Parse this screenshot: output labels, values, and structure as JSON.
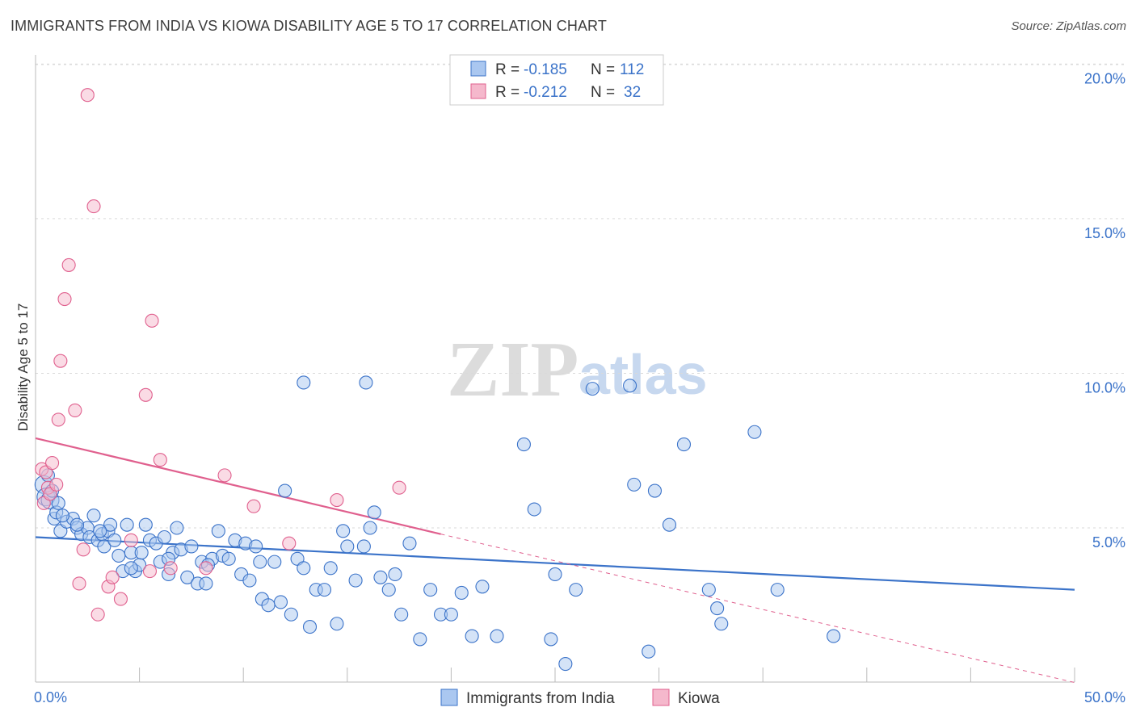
{
  "title": "IMMIGRANTS FROM INDIA VS KIOWA DISABILITY AGE 5 TO 17 CORRELATION CHART",
  "source": "Source: ZipAtlas.com",
  "watermark": {
    "part1": "ZIP",
    "part2": "atlas"
  },
  "colors": {
    "blue": "#3b73c9",
    "blue_fill": "#aac7f0",
    "pink": "#e0608e",
    "pink_fill": "#f5b8cc",
    "grid": "#d9d9d9"
  },
  "chart_data": {
    "type": "scatter",
    "title": "IMMIGRANTS FROM INDIA VS KIOWA DISABILITY AGE 5 TO 17 CORRELATION CHART",
    "xlabel": "",
    "ylabel": "Disability Age 5 to 17",
    "xlim": [
      0,
      50
    ],
    "ylim": [
      0,
      21
    ],
    "x_tick_labels": [
      "0.0%",
      "50.0%"
    ],
    "y_ticks": [
      5,
      10,
      15,
      20
    ],
    "y_tick_labels": [
      "5.0%",
      "10.0%",
      "15.0%",
      "20.0%"
    ],
    "grid": true,
    "legend_position": "bottom-center",
    "stats": [
      {
        "r_label": "R =",
        "r": "-0.185",
        "n_label": "N =",
        "n": "112"
      },
      {
        "r_label": "R =",
        "r": "-0.212",
        "n_label": "N =",
        "n": "32"
      }
    ],
    "series": [
      {
        "name": "Immigrants from India",
        "color": "#3b73c9",
        "trend": {
          "x": [
            0,
            50
          ],
          "y": [
            4.7,
            3.0
          ]
        },
        "points": [
          [
            0.4,
            6.4
          ],
          [
            0.5,
            6.0
          ],
          [
            0.7,
            5.9
          ],
          [
            0.9,
            5.3
          ],
          [
            1.0,
            5.5
          ],
          [
            1.1,
            5.8
          ],
          [
            1.2,
            4.9
          ],
          [
            1.5,
            5.2
          ],
          [
            1.8,
            5.3
          ],
          [
            2.0,
            5.0
          ],
          [
            2.2,
            4.8
          ],
          [
            2.5,
            5.0
          ],
          [
            2.6,
            4.7
          ],
          [
            2.8,
            5.4
          ],
          [
            3.0,
            4.6
          ],
          [
            3.2,
            4.8
          ],
          [
            3.3,
            4.4
          ],
          [
            3.5,
            4.9
          ],
          [
            3.6,
            5.1
          ],
          [
            3.8,
            4.6
          ],
          [
            4.0,
            4.1
          ],
          [
            4.2,
            3.6
          ],
          [
            4.4,
            5.1
          ],
          [
            4.6,
            4.2
          ],
          [
            4.8,
            3.6
          ],
          [
            5.0,
            3.8
          ],
          [
            5.1,
            4.2
          ],
          [
            5.3,
            5.1
          ],
          [
            5.5,
            4.6
          ],
          [
            5.8,
            4.5
          ],
          [
            6.0,
            3.9
          ],
          [
            6.2,
            4.7
          ],
          [
            6.4,
            3.5
          ],
          [
            6.6,
            4.2
          ],
          [
            6.8,
            5.0
          ],
          [
            7.0,
            4.3
          ],
          [
            7.3,
            3.4
          ],
          [
            7.5,
            4.4
          ],
          [
            7.8,
            3.2
          ],
          [
            8.0,
            3.9
          ],
          [
            8.2,
            3.2
          ],
          [
            8.5,
            4.0
          ],
          [
            8.8,
            4.9
          ],
          [
            9.0,
            4.1
          ],
          [
            9.3,
            4.0
          ],
          [
            9.6,
            4.6
          ],
          [
            9.9,
            3.5
          ],
          [
            10.1,
            4.5
          ],
          [
            10.3,
            3.3
          ],
          [
            10.6,
            4.4
          ],
          [
            10.9,
            2.7
          ],
          [
            11.2,
            2.5
          ],
          [
            11.5,
            3.9
          ],
          [
            11.8,
            2.6
          ],
          [
            12.0,
            6.2
          ],
          [
            12.3,
            2.2
          ],
          [
            12.6,
            4.0
          ],
          [
            12.9,
            3.7
          ],
          [
            13.2,
            1.8
          ],
          [
            13.5,
            3.0
          ],
          [
            13.9,
            3.0
          ],
          [
            14.2,
            3.7
          ],
          [
            14.5,
            1.9
          ],
          [
            14.8,
            4.9
          ],
          [
            15.0,
            4.4
          ],
          [
            15.4,
            3.3
          ],
          [
            15.8,
            4.4
          ],
          [
            16.1,
            5.0
          ],
          [
            16.3,
            5.5
          ],
          [
            16.6,
            3.4
          ],
          [
            17.0,
            3.0
          ],
          [
            17.3,
            3.5
          ],
          [
            17.6,
            2.2
          ],
          [
            18.0,
            4.5
          ],
          [
            18.5,
            1.4
          ],
          [
            19.0,
            3.0
          ],
          [
            19.5,
            2.2
          ],
          [
            20.0,
            2.2
          ],
          [
            20.5,
            2.9
          ],
          [
            21.0,
            1.5
          ],
          [
            21.5,
            3.1
          ],
          [
            22.2,
            1.5
          ],
          [
            23.5,
            7.7
          ],
          [
            24.0,
            5.6
          ],
          [
            24.8,
            1.4
          ],
          [
            25.0,
            3.5
          ],
          [
            25.5,
            0.6
          ],
          [
            26.0,
            3.0
          ],
          [
            26.8,
            9.5
          ],
          [
            28.6,
            9.6
          ],
          [
            28.8,
            6.4
          ],
          [
            29.5,
            1.0
          ],
          [
            29.8,
            6.2
          ],
          [
            30.5,
            5.1
          ],
          [
            31.2,
            7.7
          ],
          [
            32.4,
            3.0
          ],
          [
            32.8,
            2.4
          ],
          [
            33.0,
            1.9
          ],
          [
            34.6,
            8.1
          ],
          [
            35.7,
            3.0
          ],
          [
            38.4,
            1.5
          ],
          [
            15.9,
            9.7
          ],
          [
            12.9,
            9.7
          ],
          [
            10.8,
            3.9
          ],
          [
            8.3,
            3.8
          ],
          [
            6.4,
            4.0
          ],
          [
            4.6,
            3.7
          ],
          [
            3.1,
            4.9
          ],
          [
            2.0,
            5.1
          ],
          [
            1.3,
            5.4
          ],
          [
            0.8,
            6.2
          ],
          [
            0.6,
            6.7
          ]
        ]
      },
      {
        "name": "Kiowa",
        "color": "#e0608e",
        "trend": {
          "x": [
            0,
            19.5
          ],
          "y": [
            7.9,
            4.8
          ]
        },
        "trend_extended": {
          "x": [
            19.5,
            50
          ],
          "y": [
            4.8,
            0.0
          ]
        },
        "points": [
          [
            0.3,
            6.9
          ],
          [
            0.4,
            5.8
          ],
          [
            0.5,
            6.8
          ],
          [
            0.6,
            6.3
          ],
          [
            0.7,
            6.1
          ],
          [
            0.8,
            7.1
          ],
          [
            1.0,
            6.4
          ],
          [
            1.1,
            8.5
          ],
          [
            1.2,
            10.4
          ],
          [
            1.4,
            12.4
          ],
          [
            1.6,
            13.5
          ],
          [
            1.9,
            8.8
          ],
          [
            2.1,
            3.2
          ],
          [
            2.3,
            4.3
          ],
          [
            2.5,
            19.0
          ],
          [
            2.8,
            15.4
          ],
          [
            3.0,
            2.2
          ],
          [
            3.5,
            3.1
          ],
          [
            3.7,
            3.4
          ],
          [
            4.1,
            2.7
          ],
          [
            4.6,
            4.6
          ],
          [
            5.3,
            9.3
          ],
          [
            5.5,
            3.6
          ],
          [
            5.6,
            11.7
          ],
          [
            6.0,
            7.2
          ],
          [
            6.5,
            3.7
          ],
          [
            8.2,
            3.7
          ],
          [
            9.1,
            6.7
          ],
          [
            10.5,
            5.7
          ],
          [
            12.2,
            4.5
          ],
          [
            14.5,
            5.9
          ],
          [
            17.5,
            6.3
          ]
        ]
      }
    ]
  },
  "legend": {
    "items": [
      "Immigrants from India",
      "Kiowa"
    ]
  }
}
